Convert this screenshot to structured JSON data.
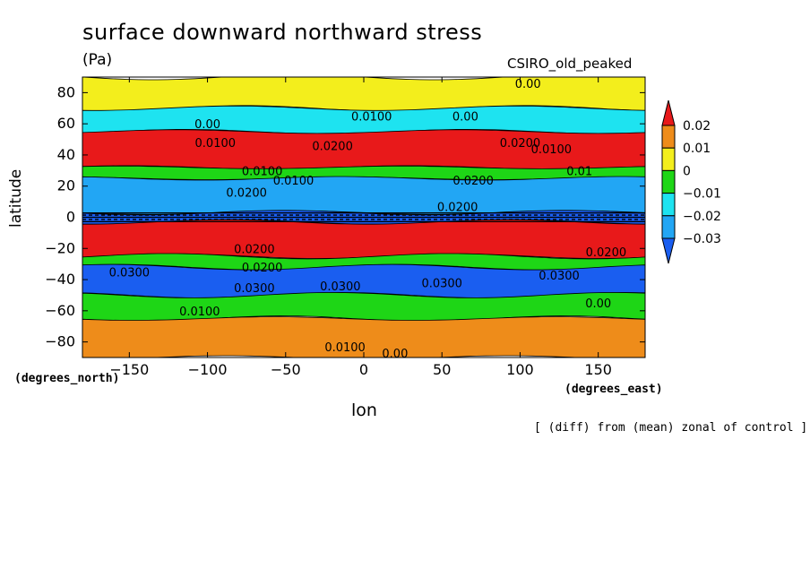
{
  "figure": {
    "title": "surface downward northward stress",
    "units": "(Pa)",
    "model": "CSIRO_old_peaked",
    "note": "[ (diff) from (mean) zonal of control ]"
  },
  "chart_data": {
    "type": "heatmap",
    "title": "surface downward northward stress",
    "xlabel": "lon",
    "ylabel": "latitude",
    "x_units": "(degrees_east)",
    "y_units": "(degrees_north)",
    "xlim": [
      -180,
      180
    ],
    "ylim": [
      -90,
      90
    ],
    "x_ticks": [
      -150,
      -100,
      -50,
      0,
      50,
      100,
      150
    ],
    "y_ticks": [
      -80,
      -60,
      -40,
      -20,
      0,
      20,
      40,
      60,
      80
    ],
    "colorbar": {
      "levels": [
        0.02,
        0.01,
        0,
        -0.01,
        -0.02,
        -0.03
      ],
      "labels": [
        "0.02",
        "0.01",
        "0",
        "−0.01",
        "−0.02",
        "−0.03"
      ],
      "colors": {
        "gt_0.02": "#e8191a",
        "0.01_to_0.02": "#ee8c1a",
        "0_to_0.01": "#f3ee1c",
        "-0.01_to_0": "#1ed616",
        "-0.02_to_-0.01": "#1ee3f0",
        "-0.03_to_-0.02": "#22a6f4",
        "lt_-0.03": "#1a5ef0"
      }
    },
    "zonal_bands": [
      {
        "lat_from": 90,
        "lat_to": 70,
        "level": "0_to_0.01"
      },
      {
        "lat_from": 70,
        "lat_to": 55,
        "level": "-0.02_to_-0.01"
      },
      {
        "lat_from": 55,
        "lat_to": 32,
        "level": "gt_0.02"
      },
      {
        "lat_from": 32,
        "lat_to": 25,
        "level": "-0.01_to_0"
      },
      {
        "lat_from": 25,
        "lat_to": 3,
        "level": "-0.03_to_-0.02"
      },
      {
        "lat_from": 3,
        "lat_to": -3,
        "level": "lt_-0.03"
      },
      {
        "lat_from": -3,
        "lat_to": -25,
        "level": "gt_0.02"
      },
      {
        "lat_from": -25,
        "lat_to": -32,
        "level": "-0.01_to_0"
      },
      {
        "lat_from": -32,
        "lat_to": -50,
        "level": "lt_-0.03"
      },
      {
        "lat_from": -50,
        "lat_to": -65,
        "level": "-0.01_to_0"
      },
      {
        "lat_from": -65,
        "lat_to": -90,
        "level": "0.01_to_0.02"
      }
    ],
    "contour_labels": [
      {
        "text": "0.00",
        "lon": -100,
        "lat": 60
      },
      {
        "text": "0.0100",
        "lon": -95,
        "lat": 48
      },
      {
        "text": "0.0100",
        "lon": 5,
        "lat": 65
      },
      {
        "text": "0.00",
        "lon": 65,
        "lat": 65
      },
      {
        "text": "0.00",
        "lon": 105,
        "lat": 86
      },
      {
        "text": "0.0200",
        "lon": -20,
        "lat": 46
      },
      {
        "text": "0.0200",
        "lon": 100,
        "lat": 48
      },
      {
        "text": "0.0100",
        "lon": 120,
        "lat": 44
      },
      {
        "text": "0.01",
        "lon": 138,
        "lat": 30
      },
      {
        "text": "0.0100",
        "lon": -65,
        "lat": 30
      },
      {
        "text": "0.0100",
        "lon": -45,
        "lat": 24
      },
      {
        "text": "0.0200",
        "lon": -75,
        "lat": 16
      },
      {
        "text": "0.0200",
        "lon": 70,
        "lat": 24
      },
      {
        "text": "0.0200",
        "lon": 60,
        "lat": 7
      },
      {
        "text": "0.0200",
        "lon": -70,
        "lat": -20
      },
      {
        "text": "0.0200",
        "lon": 155,
        "lat": -22
      },
      {
        "text": "0.0200",
        "lon": -65,
        "lat": -32
      },
      {
        "text": "0.0300",
        "lon": -150,
        "lat": -35
      },
      {
        "text": "0.0300",
        "lon": -70,
        "lat": -45
      },
      {
        "text": "0.0300",
        "lon": -15,
        "lat": -44
      },
      {
        "text": "0.0300",
        "lon": 50,
        "lat": -42
      },
      {
        "text": "0.0300",
        "lon": 125,
        "lat": -37
      },
      {
        "text": "0.0100",
        "lon": -105,
        "lat": -60
      },
      {
        "text": "0.0100",
        "lon": -12,
        "lat": -83
      },
      {
        "text": "0.00",
        "lon": 20,
        "lat": -87
      },
      {
        "text": "0.00",
        "lon": 150,
        "lat": -55
      }
    ]
  }
}
